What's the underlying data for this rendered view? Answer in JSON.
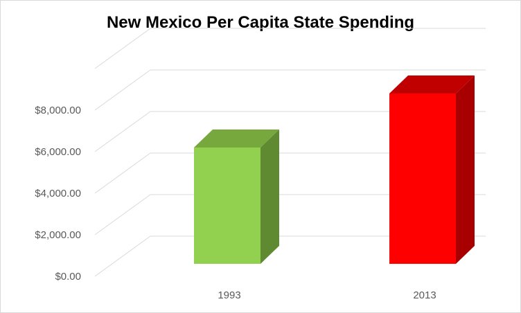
{
  "chart_data": {
    "type": "bar",
    "style": "3d-column",
    "title": "New Mexico Per Capita State Spending",
    "xlabel": "",
    "ylabel": "",
    "categories": [
      "1993",
      "2013"
    ],
    "values": [
      5600,
      8200
    ],
    "ylim": [
      0,
      10000
    ],
    "yticks": [
      0,
      2000,
      4000,
      6000,
      8000
    ],
    "ytick_labels": [
      "$0.00",
      "$2,000.00",
      "$4,000.00",
      "$6,000.00",
      "$8,000.00"
    ],
    "grid": true,
    "legend": "none",
    "colors": {
      "bars": [
        {
          "front": "#92d050",
          "side": "#5f8a32",
          "top": "#76a83e"
        },
        {
          "front": "#ff0000",
          "side": "#a80000",
          "top": "#c00000"
        }
      ],
      "grid": "#d9d9d9",
      "tick_text": "#595959"
    }
  }
}
